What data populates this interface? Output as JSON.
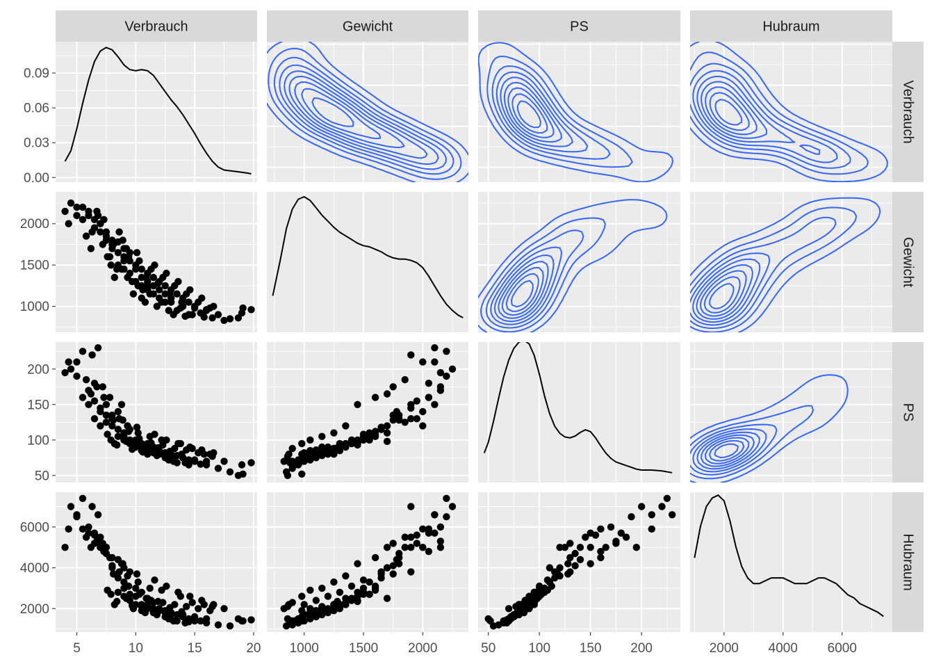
{
  "chart_data": {
    "type": "scatter-matrix",
    "title": "",
    "variables": [
      "Verbrauch",
      "Gewicht",
      "PS",
      "Hubraum"
    ],
    "colors": {
      "panel_bg": "#EBEBEB",
      "strip_bg": "#D9D9D9",
      "grid": "#FFFFFF",
      "points": "#000000",
      "density_line": "#000000",
      "contour": "#3366FF",
      "axis_text": "#4D4D4D",
      "strip_text": "#1A1A1A"
    },
    "axes": {
      "Verbrauch": {
        "range": [
          3.2,
          20.3
        ],
        "ticks": [
          5,
          10,
          15,
          20
        ],
        "tick_labels": [
          "5",
          "10",
          "15",
          "20"
        ]
      },
      "Gewicht": {
        "range": [
          685,
          2385
        ],
        "ticks": [
          1000,
          1500,
          2000
        ],
        "tick_labels": [
          "1000",
          "1500",
          "2000"
        ]
      },
      "PS": {
        "range": [
          40,
          238
        ],
        "ticks": [
          50,
          100,
          150,
          200
        ],
        "tick_labels": [
          "50",
          "100",
          "150",
          "200"
        ]
      },
      "Hubraum": {
        "range": [
          850,
          7700
        ],
        "ticks": [
          2000,
          4000,
          6000
        ],
        "tick_labels": [
          "2000",
          "4000",
          "6000"
        ]
      }
    },
    "diagonal_density": {
      "Verbrauch": {
        "range": [
          -0.004,
          0.117
        ],
        "ticks": [
          0,
          0.03,
          0.06,
          0.09
        ],
        "tick_labels": [
          "0.00",
          "0.03",
          "0.06",
          "0.09"
        ],
        "curve": [
          [
            4.0,
            0.014
          ],
          [
            4.5,
            0.023
          ],
          [
            5.0,
            0.042
          ],
          [
            5.5,
            0.064
          ],
          [
            6.0,
            0.084
          ],
          [
            6.5,
            0.1
          ],
          [
            7.0,
            0.109
          ],
          [
            7.5,
            0.112
          ],
          [
            8.0,
            0.11
          ],
          [
            8.5,
            0.104
          ],
          [
            9.0,
            0.097
          ],
          [
            9.5,
            0.093
          ],
          [
            10.0,
            0.092
          ],
          [
            10.5,
            0.093
          ],
          [
            11.0,
            0.092
          ],
          [
            11.5,
            0.088
          ],
          [
            12.0,
            0.081
          ],
          [
            12.5,
            0.074
          ],
          [
            13.0,
            0.067
          ],
          [
            13.5,
            0.061
          ],
          [
            14.0,
            0.054
          ],
          [
            14.5,
            0.046
          ],
          [
            15.0,
            0.038
          ],
          [
            15.5,
            0.029
          ],
          [
            16.0,
            0.021
          ],
          [
            16.5,
            0.014
          ],
          [
            17.0,
            0.009
          ],
          [
            17.5,
            0.0065
          ],
          [
            18.0,
            0.0058
          ],
          [
            18.5,
            0.0052
          ],
          [
            19.0,
            0.0045
          ],
          [
            19.5,
            0.0038
          ],
          [
            19.8,
            0.0032
          ]
        ]
      },
      "Gewicht": {
        "range": [
          -5e-05,
          0.0011
        ],
        "curve": [
          [
            735,
            0.00025
          ],
          [
            800,
            0.00055
          ],
          [
            850,
            0.0008
          ],
          [
            900,
            0.00096
          ],
          [
            950,
            0.00104
          ],
          [
            1000,
            0.00106
          ],
          [
            1050,
            0.00103
          ],
          [
            1100,
            0.00097
          ],
          [
            1150,
            0.00091
          ],
          [
            1200,
            0.00086
          ],
          [
            1250,
            0.00081
          ],
          [
            1300,
            0.00077
          ],
          [
            1350,
            0.00074
          ],
          [
            1400,
            0.00071
          ],
          [
            1450,
            0.00068
          ],
          [
            1500,
            0.00066
          ],
          [
            1550,
            0.00065
          ],
          [
            1600,
            0.00063
          ],
          [
            1650,
            0.00061
          ],
          [
            1700,
            0.00058
          ],
          [
            1750,
            0.00056
          ],
          [
            1800,
            0.00055
          ],
          [
            1850,
            0.00055
          ],
          [
            1900,
            0.00054
          ],
          [
            1950,
            0.00052
          ],
          [
            2000,
            0.00048
          ],
          [
            2050,
            0.00041
          ],
          [
            2100,
            0.00033
          ],
          [
            2150,
            0.00025
          ],
          [
            2200,
            0.00018
          ],
          [
            2250,
            0.00013
          ],
          [
            2300,
            9e-05
          ],
          [
            2340,
            7e-05
          ]
        ]
      },
      "PS": {
        "range": [
          -0.0005,
          0.0152
        ],
        "curve": [
          [
            46,
            0.0028
          ],
          [
            50,
            0.004
          ],
          [
            55,
            0.0063
          ],
          [
            60,
            0.0089
          ],
          [
            65,
            0.0113
          ],
          [
            70,
            0.0132
          ],
          [
            75,
            0.0145
          ],
          [
            80,
            0.0152
          ],
          [
            85,
            0.0154
          ],
          [
            90,
            0.015
          ],
          [
            95,
            0.0137
          ],
          [
            100,
            0.0116
          ],
          [
            105,
            0.0092
          ],
          [
            110,
            0.0072
          ],
          [
            115,
            0.0058
          ],
          [
            120,
            0.005
          ],
          [
            125,
            0.0046
          ],
          [
            130,
            0.0045
          ],
          [
            135,
            0.0047
          ],
          [
            140,
            0.0051
          ],
          [
            145,
            0.0054
          ],
          [
            150,
            0.0052
          ],
          [
            155,
            0.0045
          ],
          [
            160,
            0.0036
          ],
          [
            165,
            0.0028
          ],
          [
            170,
            0.0022
          ],
          [
            175,
            0.0018
          ],
          [
            180,
            0.0016
          ],
          [
            185,
            0.0014
          ],
          [
            190,
            0.0012
          ],
          [
            195,
            0.001
          ],
          [
            200,
            0.0009
          ],
          [
            210,
            0.0009
          ],
          [
            220,
            0.0008
          ],
          [
            230,
            0.0006
          ]
        ]
      },
      "Hubraum": {
        "range": [
          -1e-05,
          0.00048
        ],
        "curve": [
          [
            1000,
            0.00025
          ],
          [
            1200,
            0.00036
          ],
          [
            1400,
            0.00043
          ],
          [
            1600,
            0.00046
          ],
          [
            1800,
            0.00047
          ],
          [
            2000,
            0.00045
          ],
          [
            2200,
            0.00038
          ],
          [
            2400,
            0.00029
          ],
          [
            2600,
            0.00022
          ],
          [
            2800,
            0.00018
          ],
          [
            3000,
            0.00016
          ],
          [
            3200,
            0.00016
          ],
          [
            3400,
            0.00017
          ],
          [
            3600,
            0.00018
          ],
          [
            3800,
            0.00018
          ],
          [
            4000,
            0.00018
          ],
          [
            4200,
            0.00017
          ],
          [
            4400,
            0.00016
          ],
          [
            4600,
            0.00016
          ],
          [
            4800,
            0.00016
          ],
          [
            5000,
            0.00017
          ],
          [
            5200,
            0.00018
          ],
          [
            5400,
            0.00018
          ],
          [
            5600,
            0.00017
          ],
          [
            5800,
            0.00016
          ],
          [
            6000,
            0.00014
          ],
          [
            6200,
            0.00012
          ],
          [
            6400,
            0.00011
          ],
          [
            6600,
            9e-05
          ],
          [
            6800,
            8e-05
          ],
          [
            7000,
            7e-05
          ],
          [
            7200,
            6e-05
          ],
          [
            7400,
            4.5e-05
          ]
        ]
      }
    },
    "observations": [
      [
        7,
        2000,
        120,
        5000
      ],
      [
        6.5,
        1950,
        130,
        5200
      ],
      [
        6,
        2100,
        150,
        5700
      ],
      [
        8.5,
        1780,
        140,
        4400
      ],
      [
        7.5,
        1850,
        125,
        5000
      ],
      [
        5.5,
        2050,
        160,
        5900
      ],
      [
        9,
        1700,
        110,
        4000
      ],
      [
        8,
        1800,
        130,
        4500
      ],
      [
        7,
        2000,
        140,
        5000
      ],
      [
        6,
        2150,
        170,
        6000
      ],
      [
        5,
        2200,
        190,
        6500
      ],
      [
        4.5,
        2250,
        200,
        7000
      ],
      [
        5,
        2100,
        210,
        6600
      ],
      [
        6.5,
        2050,
        180,
        5700
      ],
      [
        7.5,
        1900,
        150,
        5000
      ],
      [
        8,
        1750,
        135,
        4100
      ],
      [
        9.5,
        1650,
        115,
        3800
      ],
      [
        10,
        1500,
        100,
        3000
      ],
      [
        10.5,
        1450,
        95,
        2800
      ],
      [
        11,
        1400,
        95,
        2500
      ],
      [
        11.5,
        1350,
        90,
        2300
      ],
      [
        12,
        1300,
        85,
        2000
      ],
      [
        12.5,
        1250,
        82,
        1900
      ],
      [
        13,
        1200,
        80,
        1800
      ],
      [
        13.5,
        1150,
        78,
        1700
      ],
      [
        14,
        1100,
        75,
        1600
      ],
      [
        14.5,
        1050,
        72,
        1500
      ],
      [
        15,
        1000,
        70,
        1400
      ],
      [
        16,
        950,
        65,
        1300
      ],
      [
        17,
        900,
        60,
        1200
      ],
      [
        18,
        850,
        55,
        1150
      ],
      [
        19,
        920,
        65,
        1400
      ],
      [
        19.8,
        960,
        68,
        1450
      ],
      [
        9,
        1600,
        105,
        3000
      ],
      [
        9.5,
        1550,
        100,
        2700
      ],
      [
        10,
        1450,
        97,
        2600
      ],
      [
        10.5,
        1350,
        92,
        2200
      ],
      [
        11,
        1300,
        90,
        2100
      ],
      [
        11.5,
        1250,
        88,
        2000
      ],
      [
        12,
        1200,
        85,
        1900
      ],
      [
        12.5,
        1150,
        82,
        1800
      ],
      [
        13,
        1100,
        80,
        1700
      ],
      [
        8,
        1700,
        120,
        4000
      ],
      [
        8.5,
        1650,
        115,
        3500
      ],
      [
        9,
        1550,
        110,
        3300
      ],
      [
        7,
        1900,
        145,
        5500
      ],
      [
        6.5,
        1950,
        155,
        5600
      ],
      [
        7.5,
        1800,
        135,
        4700
      ],
      [
        10,
        1300,
        90,
        2200
      ],
      [
        11,
        1200,
        85,
        2000
      ],
      [
        12,
        1100,
        80,
        1900
      ],
      [
        13,
        1050,
        78,
        1800
      ],
      [
        14,
        1000,
        75,
        1700
      ],
      [
        15,
        980,
        72,
        1600
      ],
      [
        16,
        960,
        70,
        1500
      ],
      [
        11,
        1250,
        80,
        2200
      ],
      [
        9.5,
        1400,
        95,
        2400
      ],
      [
        10.5,
        1250,
        88,
        2100
      ],
      [
        8.5,
        1500,
        105,
        2800
      ],
      [
        9,
        1450,
        100,
        2600
      ],
      [
        13.5,
        950,
        68,
        1400
      ],
      [
        14.5,
        900,
        65,
        1350
      ],
      [
        15.5,
        920,
        66,
        1400
      ],
      [
        12.5,
        1050,
        75,
        1600
      ],
      [
        11.5,
        1150,
        82,
        1800
      ],
      [
        10.5,
        1100,
        85,
        1900
      ],
      [
        4,
        2150,
        195,
        5000
      ],
      [
        4.3,
        2000,
        210,
        5900
      ],
      [
        5.5,
        2200,
        225,
        7400
      ],
      [
        6.3,
        1900,
        220,
        7000
      ],
      [
        6.8,
        2100,
        230,
        6600
      ],
      [
        7.2,
        1750,
        175,
        5200
      ],
      [
        5.8,
        1850,
        185,
        5500
      ],
      [
        6.2,
        1700,
        165,
        5000
      ],
      [
        7.8,
        1600,
        160,
        4500
      ],
      [
        8.8,
        1450,
        150,
        4200
      ],
      [
        9.3,
        1350,
        120,
        3600
      ],
      [
        10.2,
        1250,
        110,
        3300
      ],
      [
        11.2,
        1150,
        105,
        3000
      ],
      [
        12.2,
        1050,
        100,
        2900
      ],
      [
        13.8,
        980,
        95,
        2600
      ],
      [
        14.8,
        900,
        88,
        2300
      ],
      [
        15.8,
        870,
        80,
        2200
      ],
      [
        16.5,
        860,
        77,
        2100
      ],
      [
        17.5,
        830,
        70,
        2000
      ],
      [
        18.7,
        860,
        50,
        1500
      ],
      [
        19.1,
        980,
        52,
        1400
      ],
      [
        8.2,
        1350,
        95,
        2200
      ],
      [
        7.9,
        1500,
        100,
        2700
      ],
      [
        9.8,
        1150,
        90,
        2000
      ],
      [
        10.8,
        1050,
        85,
        1800
      ],
      [
        12.8,
        950,
        72,
        1500
      ],
      [
        13.2,
        900,
        70,
        1400
      ],
      [
        14.2,
        880,
        68,
        1300
      ],
      [
        11.8,
        1000,
        78,
        1700
      ],
      [
        9.2,
        1700,
        98,
        2500
      ],
      [
        10.3,
        1550,
        102,
        2700
      ],
      [
        11.3,
        1450,
        96,
        2400
      ],
      [
        12.3,
        1350,
        93,
        2300
      ],
      [
        13.3,
        1250,
        88,
        2200
      ],
      [
        14.3,
        1150,
        86,
        2100
      ],
      [
        15.3,
        1050,
        82,
        2000
      ],
      [
        16.3,
        980,
        80,
        1900
      ],
      [
        8.6,
        1900,
        130,
        3800
      ],
      [
        7.3,
        2050,
        160,
        4800
      ],
      [
        6.7,
        2150,
        175,
        5300
      ],
      [
        8.9,
        1800,
        128,
        4200
      ],
      [
        10.1,
        1650,
        118,
        3700
      ],
      [
        11.6,
        1500,
        108,
        3400
      ],
      [
        12.6,
        1400,
        100,
        3100
      ],
      [
        13.6,
        1300,
        95,
        2800
      ],
      [
        14.6,
        1200,
        90,
        2600
      ],
      [
        15.6,
        1100,
        86,
        2400
      ],
      [
        16.6,
        1000,
        82,
        2200
      ],
      [
        10.6,
        1200,
        83,
        1950
      ],
      [
        9.7,
        1300,
        87,
        2150
      ],
      [
        8.4,
        1450,
        93,
        2350
      ],
      [
        7.6,
        1600,
        108,
        2900
      ],
      [
        10.9,
        1350,
        92,
        2500
      ],
      [
        12.9,
        1150,
        84,
        2050
      ],
      [
        13.9,
        1050,
        80,
        1850
      ],
      [
        11.9,
        1280,
        89,
        2350
      ],
      [
        9.4,
        1600,
        112,
        3100
      ],
      [
        8.1,
        1750,
        128,
        3700
      ]
    ]
  }
}
